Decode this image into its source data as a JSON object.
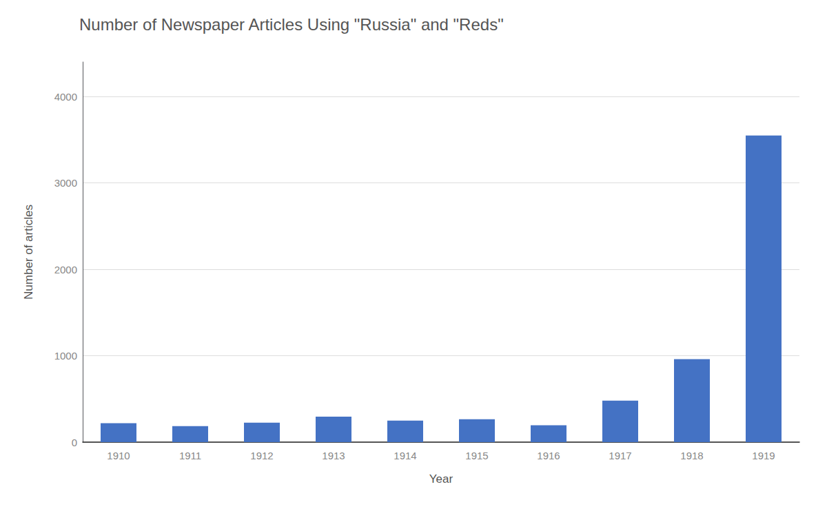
{
  "chart_data": {
    "type": "bar",
    "title": "Number of Newspaper Articles Using \"Russia\" and \"Reds\"",
    "xlabel": "Year",
    "ylabel": "Number of articles",
    "categories": [
      "1910",
      "1911",
      "1912",
      "1913",
      "1914",
      "1915",
      "1916",
      "1917",
      "1918",
      "1919"
    ],
    "values": [
      220,
      185,
      225,
      295,
      250,
      265,
      195,
      480,
      960,
      3550
    ],
    "color": "#4472C4",
    "ylim": [
      0,
      4400
    ],
    "yticks": [
      0,
      1000,
      2000,
      3000,
      4000
    ],
    "grid": true
  }
}
